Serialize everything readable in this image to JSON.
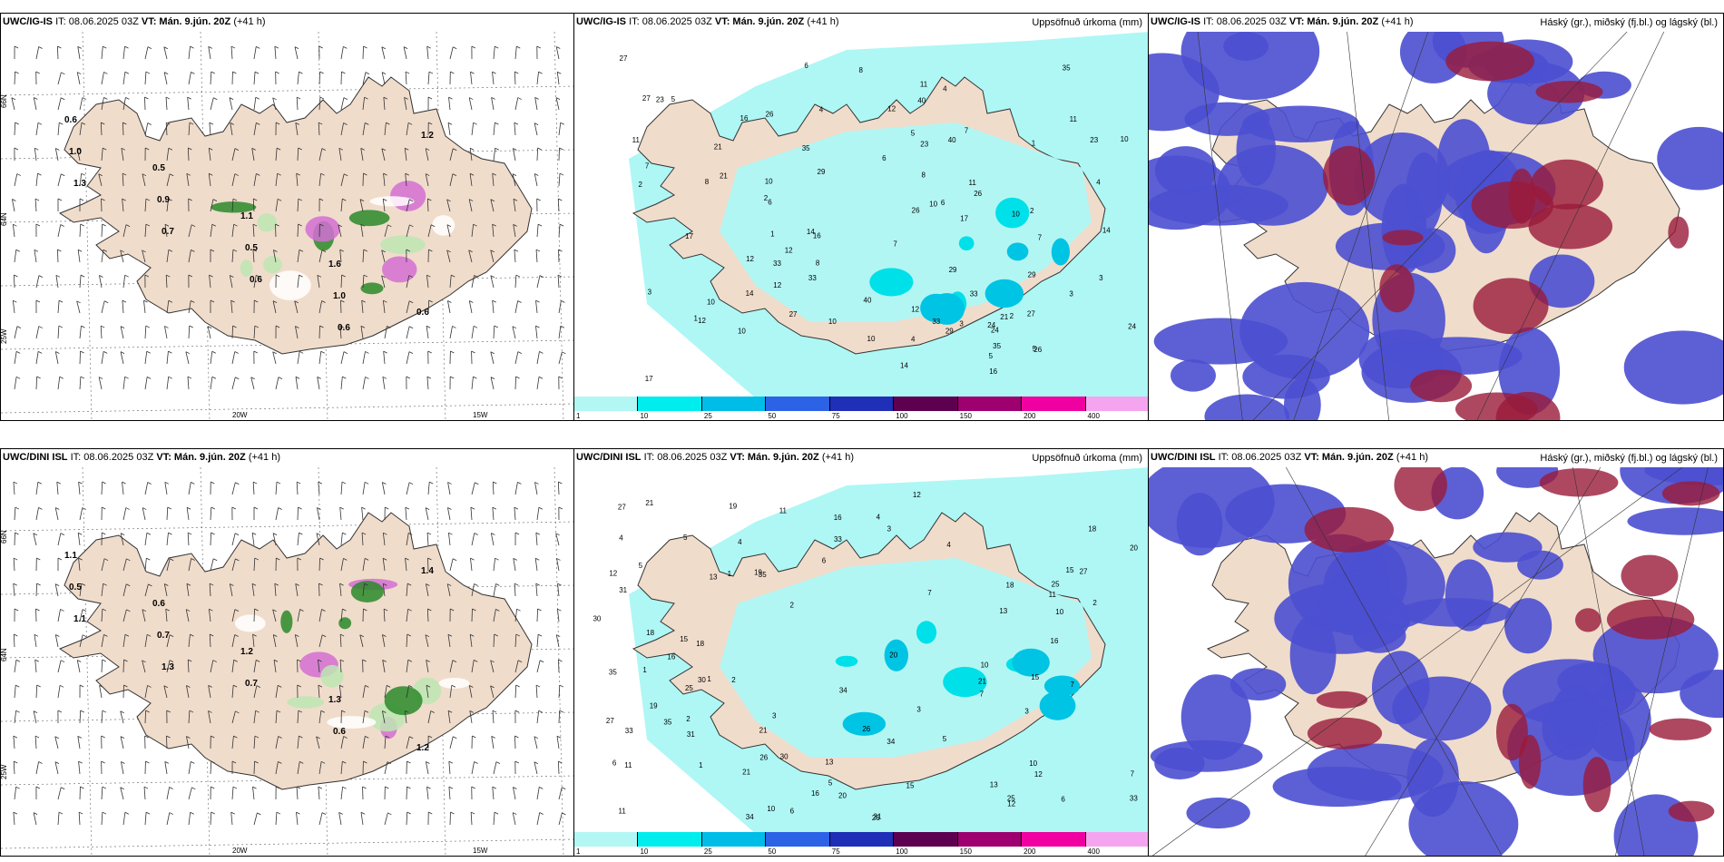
{
  "rows": [
    {
      "model": "UWC/IG-IS",
      "issue": "IT: 08.06.2025 03Z",
      "valid": "VT: Mán. 9.jún. 20Z",
      "lead": "(+41 h)",
      "wind_labels": [
        "0.6",
        "0.5",
        "1.1",
        "1.6",
        "0.6",
        "1.0",
        "0.9",
        "0.5",
        "1.0",
        "1.2",
        "1.3",
        "0.7",
        "0.6",
        "0.6"
      ],
      "precip_labels": [
        "3",
        "2",
        "5",
        "7",
        "8",
        "6",
        "4",
        "10",
        "11",
        "14",
        "26",
        "10",
        "27",
        "33",
        "29",
        "40",
        "24",
        "35",
        "23",
        "21",
        "16",
        "12",
        "17",
        "12",
        "1"
      ],
      "lon_labels": [
        "20W",
        "15W"
      ],
      "lat_labels": [
        "66N",
        "64N",
        "25W"
      ]
    },
    {
      "model": "UWC/DINI ISL",
      "issue": "IT: 08.06.2025 03Z",
      "valid": "VT: Mán. 9.jún. 20Z",
      "lead": "(+41 h)",
      "wind_labels": [
        "1.1",
        "0.6",
        "1.2",
        "1.3",
        "1.2",
        "0.5",
        "0.7",
        "0.7",
        "0.6",
        "1.4",
        "1.1",
        "1.3"
      ],
      "precip_labels": [
        "1",
        "2",
        "3",
        "4",
        "5",
        "6",
        "7",
        "10",
        "11",
        "12",
        "13",
        "15",
        "16",
        "18",
        "21",
        "25",
        "26",
        "27",
        "30",
        "31",
        "33",
        "34",
        "35",
        "19",
        "20"
      ],
      "lon_labels": [
        "20W",
        "15W"
      ],
      "lat_labels": [
        "66N",
        "64N",
        "25W"
      ]
    }
  ],
  "precip_title": "Uppsöfnuð úrkoma (mm)",
  "cloud_title": "Háský (gr.), miðský (fj.bl.) og lágský (bl.)",
  "legend": {
    "ticks": [
      "1",
      "10",
      "25",
      "50",
      "75",
      "100",
      "150",
      "200",
      "400"
    ],
    "colors": [
      "#b3f7f5",
      "#00eded",
      "#00bde8",
      "#2b62e6",
      "#1f2fb8",
      "#5e0050",
      "#9e006f",
      "#f000a0",
      "#f5a5f0"
    ]
  },
  "colors": {
    "land": "#f0dccb",
    "precip_bg": "#aef7f5",
    "cloud_low": "#4b4fd0",
    "cloud_mid": "#7a6fe0",
    "cloud_high": "#9a1a3a"
  }
}
